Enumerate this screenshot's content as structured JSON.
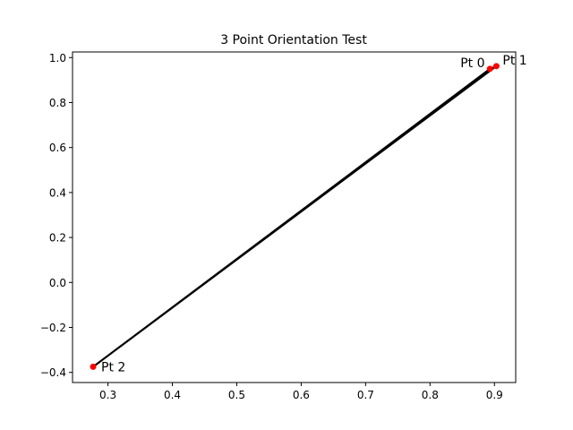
{
  "chart_data": {
    "type": "scatter",
    "title": "3 Point Orientation Test",
    "xlabel": "",
    "ylabel": "",
    "xlim": [
      0.245,
      0.933
    ],
    "ylim": [
      -0.445,
      1.025
    ],
    "xticks": [
      0.3,
      0.4,
      0.5,
      0.6,
      0.7,
      0.8,
      0.9
    ],
    "xtick_labels": [
      "0.3",
      "0.4",
      "0.5",
      "0.6",
      "0.7",
      "0.8",
      "0.9"
    ],
    "yticks": [
      -0.4,
      -0.2,
      0.0,
      0.2,
      0.4,
      0.6,
      0.8,
      1.0
    ],
    "ytick_labels": [
      "−0.4",
      "−0.2",
      "0.0",
      "0.2",
      "0.4",
      "0.6",
      "0.8",
      "1.0"
    ],
    "grid": false,
    "points": [
      {
        "label": "Pt 0",
        "x": 0.893,
        "y": 0.95
      },
      {
        "label": "Pt 1",
        "x": 0.903,
        "y": 0.962
      },
      {
        "label": "Pt 2",
        "x": 0.277,
        "y": -0.375
      }
    ],
    "triangle_order": [
      0,
      1,
      2,
      0
    ],
    "colors": {
      "points": "#ff0000",
      "edges": "#000000"
    }
  }
}
